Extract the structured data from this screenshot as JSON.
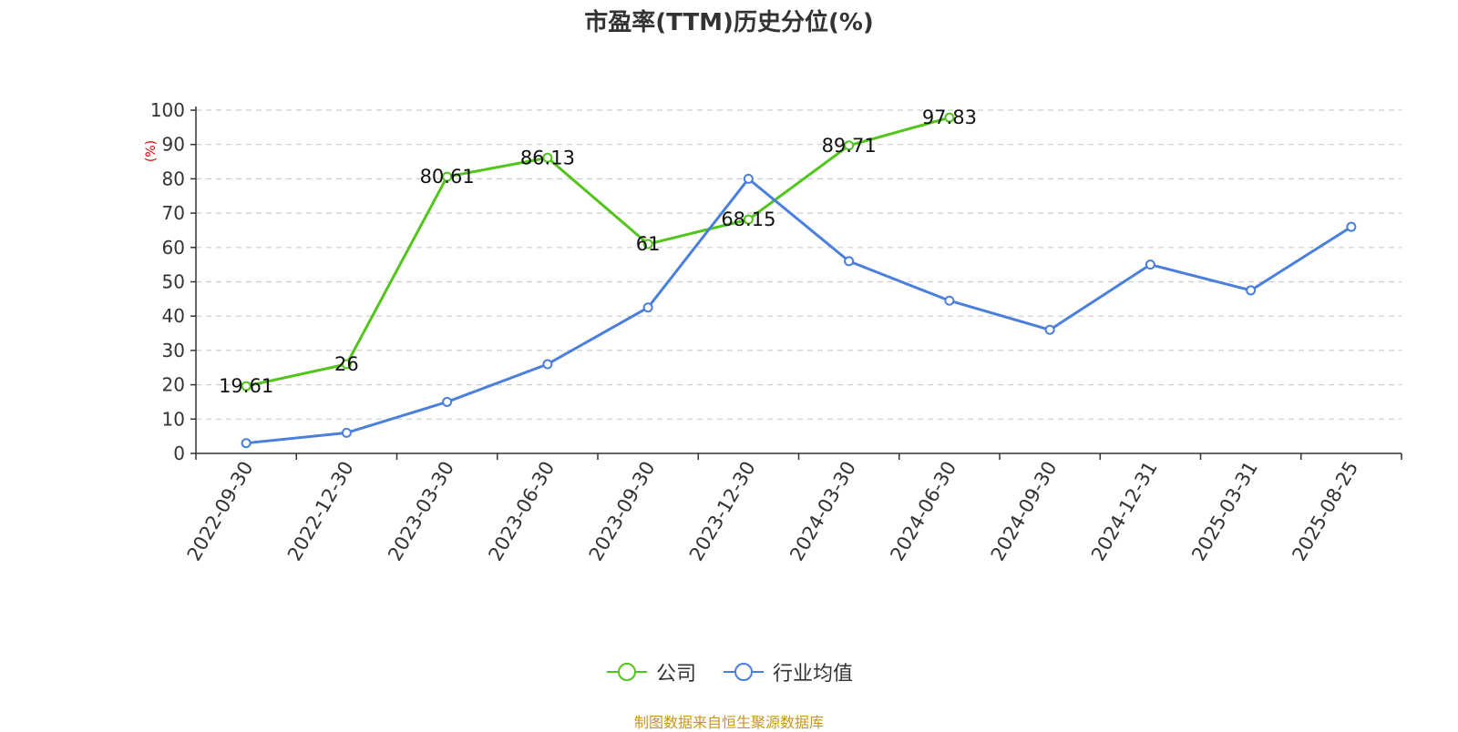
{
  "chart_data": {
    "type": "line",
    "title": "市盈率(TTM)历史分位(%)",
    "y_unit": "(%)",
    "ylim": [
      0,
      100
    ],
    "yticks": [
      0,
      10,
      20,
      30,
      40,
      50,
      60,
      70,
      80,
      90,
      100
    ],
    "grid": true,
    "legend_position": "bottom",
    "categories": [
      "2022-09-30",
      "2022-12-30",
      "2023-03-30",
      "2023-06-30",
      "2023-09-30",
      "2023-12-30",
      "2024-03-30",
      "2024-06-30",
      "2024-09-30",
      "2024-12-31",
      "2025-03-31",
      "2025-08-25"
    ],
    "series": [
      {
        "name": "公司",
        "color": "#52c41a",
        "show_labels": true,
        "values": [
          19.61,
          26,
          80.61,
          86.13,
          61,
          68.15,
          89.71,
          97.83,
          null,
          null,
          null,
          null
        ]
      },
      {
        "name": "行业均值",
        "color": "#4a7fdc",
        "show_labels": false,
        "values": [
          3,
          6,
          15,
          26,
          42.5,
          80,
          56,
          44.5,
          36,
          55,
          47.5,
          66
        ]
      }
    ]
  },
  "source": "制图数据来自恒生聚源数据库"
}
